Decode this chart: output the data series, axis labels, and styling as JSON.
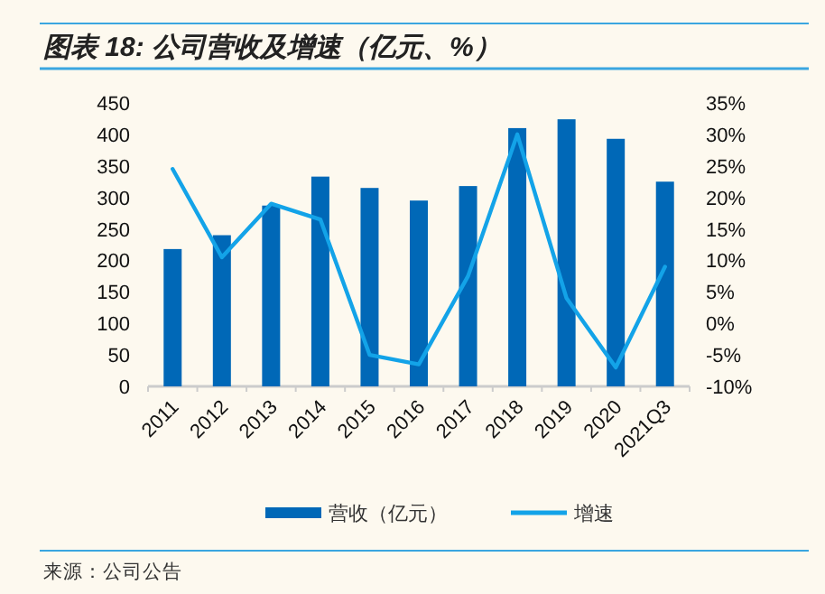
{
  "chart_data": {
    "type": "bar",
    "title": "图表 18: 公司营收及增速（亿元、%）",
    "categories": [
      "2011",
      "2012",
      "2013",
      "2014",
      "2015",
      "2016",
      "2017",
      "2018",
      "2019",
      "2020",
      "2021Q3"
    ],
    "series": [
      {
        "name": "营收（亿元）",
        "color": "#0068b7",
        "values": [
          218,
          240,
          287,
          333,
          315,
          295,
          318,
          410,
          424,
          393,
          325
        ]
      },
      {
        "name": "增速",
        "type": "line",
        "axis": "y2",
        "color": "#13a3e8",
        "values": [
          24.5,
          10.5,
          19,
          16.5,
          -5,
          -6.5,
          7.5,
          30,
          4,
          -7,
          9
        ]
      }
    ],
    "ylim": [
      0,
      450
    ],
    "yticks": [
      0,
      50,
      100,
      150,
      200,
      250,
      300,
      350,
      400,
      450
    ],
    "y2lim": [
      -10,
      35
    ],
    "y2ticks": [
      {
        "value": -10,
        "label": "-10%"
      },
      {
        "value": -5,
        "label": "-5%"
      },
      {
        "value": 0,
        "label": "0%"
      },
      {
        "value": 5,
        "label": "5%"
      },
      {
        "value": 10,
        "label": "10%"
      },
      {
        "value": 15,
        "label": "15%"
      },
      {
        "value": 20,
        "label": "20%"
      },
      {
        "value": 25,
        "label": "25%"
      },
      {
        "value": 30,
        "label": "30%"
      },
      {
        "value": 35,
        "label": "35%"
      }
    ],
    "legend": "bottom",
    "grid": false,
    "annotations": [
      "来源：公司公告"
    ]
  }
}
